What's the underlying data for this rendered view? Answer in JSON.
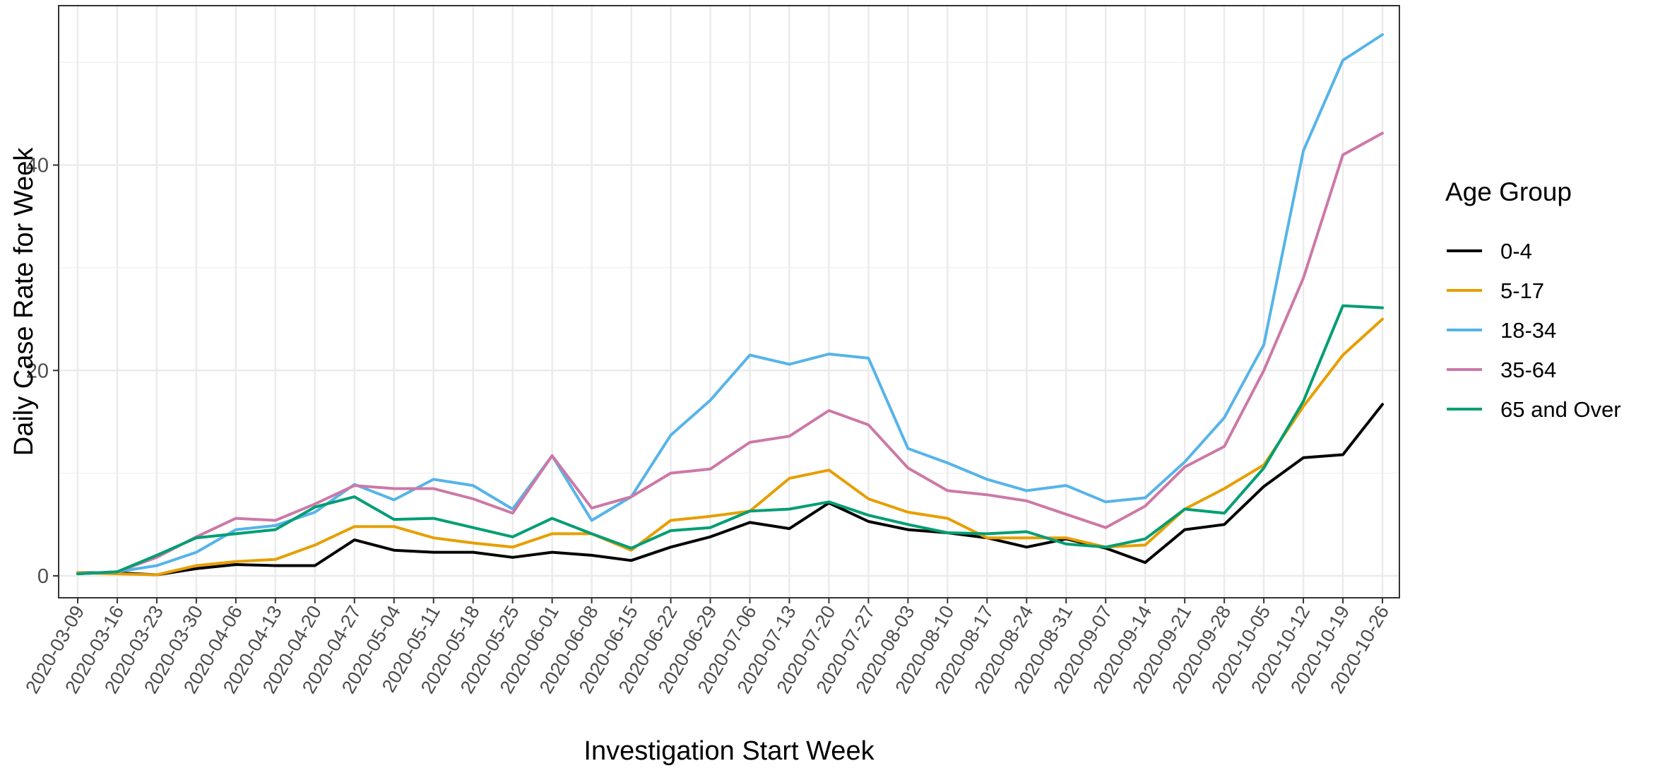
{
  "chart_data": {
    "type": "line",
    "xlabel": "Investigation Start Week",
    "ylabel": "Daily Case Rate for Week",
    "ylim": [
      -3,
      56
    ],
    "yticks": [
      0,
      20,
      40
    ],
    "grid": true,
    "legend": {
      "title": "Age Group",
      "placement": "right"
    },
    "x": [
      "2020-03-09",
      "2020-03-16",
      "2020-03-23",
      "2020-03-30",
      "2020-04-06",
      "2020-04-13",
      "2020-04-20",
      "2020-04-27",
      "2020-05-04",
      "2020-05-11",
      "2020-05-18",
      "2020-05-25",
      "2020-06-01",
      "2020-06-08",
      "2020-06-15",
      "2020-06-22",
      "2020-06-29",
      "2020-07-06",
      "2020-07-13",
      "2020-07-20",
      "2020-07-27",
      "2020-08-03",
      "2020-08-10",
      "2020-08-17",
      "2020-08-24",
      "2020-08-31",
      "2020-09-07",
      "2020-09-14",
      "2020-09-21",
      "2020-09-28",
      "2020-10-05",
      "2020-10-12",
      "2020-10-19",
      "2020-10-26"
    ],
    "series": [
      {
        "name": "0-4",
        "color": "#000000",
        "values": [
          0.3,
          0.3,
          0.1,
          0.7,
          1.1,
          1.0,
          1.0,
          3.5,
          2.5,
          2.3,
          2.3,
          1.8,
          2.3,
          2.0,
          1.5,
          2.8,
          3.8,
          5.2,
          4.6,
          7.1,
          5.3,
          4.5,
          4.2,
          3.7,
          2.8,
          3.6,
          2.7,
          1.3,
          4.5,
          5.0,
          8.7,
          11.5,
          11.8,
          16.7
        ]
      },
      {
        "name": "5-17",
        "color": "#E69F00",
        "values": [
          0.3,
          0.2,
          0.1,
          1.0,
          1.4,
          1.6,
          3.0,
          4.8,
          4.8,
          3.7,
          3.2,
          2.8,
          4.1,
          4.1,
          2.5,
          5.4,
          5.8,
          6.3,
          9.5,
          10.3,
          7.5,
          6.2,
          5.6,
          3.7,
          3.7,
          3.7,
          2.8,
          3.0,
          6.5,
          8.5,
          10.8,
          16.5,
          21.5,
          25.0
        ]
      },
      {
        "name": "18-34",
        "color": "#56B4E9",
        "values": [
          0.2,
          0.4,
          1.0,
          2.3,
          4.5,
          4.9,
          6.2,
          8.9,
          7.4,
          9.4,
          8.8,
          6.5,
          11.7,
          5.4,
          7.7,
          13.7,
          17.1,
          21.5,
          20.6,
          21.6,
          21.2,
          12.4,
          11.0,
          9.4,
          8.3,
          8.8,
          7.2,
          7.6,
          11.1,
          15.4,
          22.5,
          41.4,
          50.2,
          52.7
        ]
      },
      {
        "name": "35-64",
        "color": "#CC79A7",
        "values": [
          0.2,
          0.4,
          1.8,
          3.8,
          5.6,
          5.4,
          7.0,
          8.8,
          8.5,
          8.5,
          7.5,
          6.1,
          11.7,
          6.6,
          7.7,
          10.0,
          10.4,
          13.0,
          13.6,
          16.1,
          14.7,
          10.5,
          8.3,
          7.9,
          7.3,
          6.0,
          4.7,
          6.8,
          10.6,
          12.6,
          20.0,
          29.0,
          41.0,
          43.1
        ]
      },
      {
        "name": "65 and Over",
        "color": "#009E73",
        "values": [
          0.2,
          0.4,
          2.0,
          3.7,
          4.1,
          4.5,
          6.7,
          7.7,
          5.5,
          5.6,
          4.7,
          3.8,
          5.6,
          4.1,
          2.7,
          4.4,
          4.7,
          6.3,
          6.5,
          7.2,
          5.9,
          5.0,
          4.2,
          4.1,
          4.3,
          3.1,
          2.8,
          3.6,
          6.5,
          6.1,
          10.5,
          17.0,
          26.3,
          26.1
        ]
      }
    ]
  }
}
